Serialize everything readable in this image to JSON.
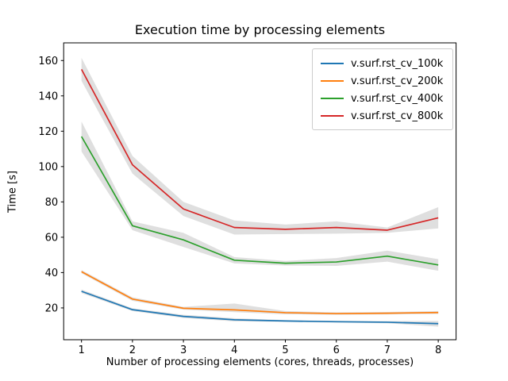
{
  "figure": {
    "background": "#ffffff",
    "axes_edge_color": "#000000",
    "legend_border_color": "#cccccc"
  },
  "chart_data": {
    "type": "line",
    "title": "Execution time by processing elements",
    "xlabel": "Number of processing elements (cores, threads, processes)",
    "ylabel": "Time [s]",
    "x": [
      1,
      2,
      3,
      4,
      5,
      6,
      7,
      8
    ],
    "xticks": [
      "1",
      "2",
      "3",
      "4",
      "5",
      "6",
      "7",
      "8"
    ],
    "yticks": [
      "20",
      "40",
      "60",
      "80",
      "100",
      "120",
      "140",
      "160"
    ],
    "xlim": [
      0.65,
      8.35
    ],
    "ylim": [
      2,
      170
    ],
    "grid": false,
    "legend_position": "upper right",
    "band_color": "#808080",
    "band_opacity": 0.25,
    "series": [
      {
        "name": "v.surf.rst_cv_100k",
        "color": "#1f77b4",
        "values": [
          29.4,
          19.0,
          15.2,
          13.3,
          12.6,
          12.2,
          11.9,
          11.1
        ],
        "band_lower": [
          28.4,
          18.2,
          14.3,
          12.4,
          12.1,
          11.7,
          11.3,
          9.4
        ],
        "band_upper": [
          30.4,
          19.8,
          16.1,
          14.2,
          13.1,
          12.7,
          12.5,
          12.6
        ]
      },
      {
        "name": "v.surf.rst_cv_200k",
        "color": "#ff7f0e",
        "values": [
          40.5,
          25.0,
          19.8,
          18.9,
          17.3,
          16.8,
          17.0,
          17.4
        ],
        "band_lower": [
          39.6,
          24.0,
          19.0,
          17.6,
          16.4,
          16.1,
          16.3,
          16.6
        ],
        "band_upper": [
          41.4,
          26.0,
          20.6,
          22.5,
          18.2,
          17.5,
          17.7,
          18.2
        ]
      },
      {
        "name": "v.surf.rst_cv_400k",
        "color": "#2ca02c",
        "values": [
          117.0,
          66.5,
          58.5,
          47.0,
          45.3,
          46.0,
          49.3,
          44.3
        ],
        "band_lower": [
          108.5,
          64.0,
          54.5,
          45.2,
          44.0,
          43.8,
          46.2,
          41.0
        ],
        "band_upper": [
          125.5,
          69.0,
          62.5,
          48.8,
          46.6,
          48.2,
          52.4,
          47.6
        ]
      },
      {
        "name": "v.surf.rst_cv_800k",
        "color": "#d62728",
        "values": [
          155.0,
          101.0,
          76.0,
          65.5,
          64.5,
          65.5,
          64.0,
          71.0
        ],
        "band_lower": [
          148.5,
          96.0,
          72.0,
          61.5,
          61.8,
          62.0,
          62.5,
          65.0
        ],
        "band_upper": [
          161.5,
          106.0,
          80.0,
          69.5,
          67.2,
          69.0,
          65.5,
          77.0
        ]
      }
    ]
  }
}
